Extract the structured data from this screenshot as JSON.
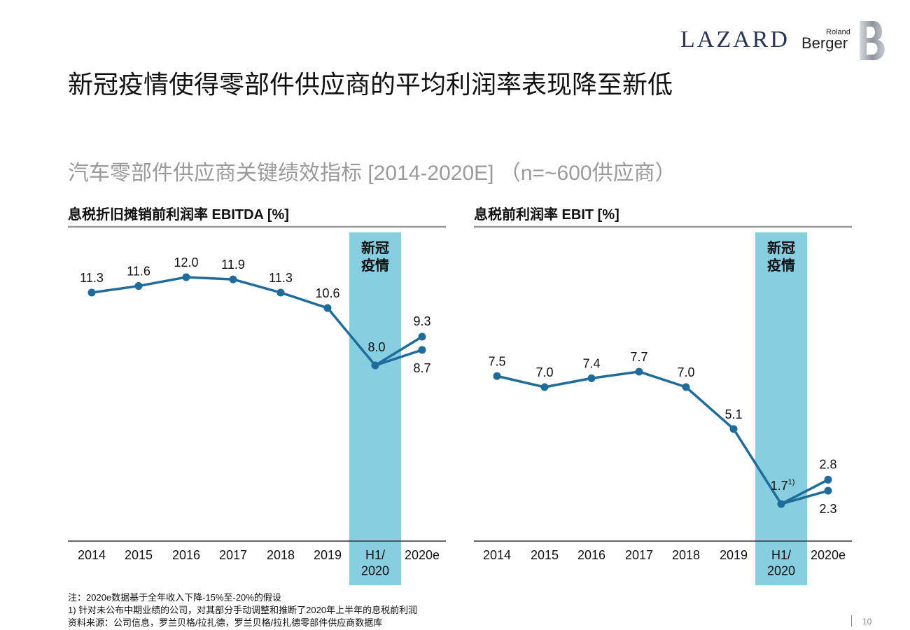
{
  "header": {
    "logo_lazard": "LAZARD",
    "logo_roland": "Roland",
    "logo_berger": "Berger"
  },
  "title": "新冠疫情使得零部件供应商的平均利润率表现降至新低",
  "subtitle": "汽车零部件供应商关键绩效指标 [2014-2020E] （n=~600供应商）",
  "colors": {
    "line": "#1f6b9a",
    "highlight_band": "#87cee0",
    "axis": "#333333",
    "header_rule": "#999999"
  },
  "chart_data": [
    {
      "type": "line",
      "title": "息税折旧摊销前利润率 EBITDA [%]",
      "categories": [
        "2014",
        "2015",
        "2016",
        "2017",
        "2018",
        "2019",
        "H1/\n2020",
        "2020e"
      ],
      "highlight": {
        "category": "H1/\n2020",
        "label": "新冠\n疫情"
      },
      "series": [
        {
          "values": [
            11.3,
            11.6,
            12.0,
            11.9,
            11.3,
            10.6,
            8.0,
            9.3
          ]
        },
        {
          "values": [
            null,
            null,
            null,
            null,
            null,
            null,
            8.0,
            8.7
          ]
        }
      ],
      "point_labels": [
        "11.3",
        "11.6",
        "12.0",
        "11.9",
        "11.3",
        "10.6",
        "8.0",
        "9.3",
        "8.7"
      ]
    },
    {
      "type": "line",
      "title": "息税前利润率 EBIT [%]",
      "categories": [
        "2014",
        "2015",
        "2016",
        "2017",
        "2018",
        "2019",
        "H1/\n2020",
        "2020e"
      ],
      "highlight": {
        "category": "H1/\n2020",
        "label": "新冠\n疫情"
      },
      "series": [
        {
          "values": [
            7.5,
            7.0,
            7.4,
            7.7,
            7.0,
            5.1,
            1.7,
            2.8
          ]
        },
        {
          "values": [
            null,
            null,
            null,
            null,
            null,
            null,
            1.7,
            2.3
          ]
        }
      ],
      "point_labels": [
        "7.5",
        "7.0",
        "7.4",
        "7.7",
        "7.0",
        "5.1",
        "1.7",
        "2.8",
        "2.3"
      ],
      "footnote_marker": "1)"
    }
  ],
  "footnotes": [
    "注：2020e数据基于全年收入下降-15%至-20%的假设",
    "1) 针对未公布中期业绩的公司，对其部分手动调整和推断了2020年上半年的息税前利润",
    "资料来源：公司信息，罗兰贝格/拉扎德，罗兰贝格/拉扎德零部件供应商数据库"
  ],
  "page_number": "10"
}
